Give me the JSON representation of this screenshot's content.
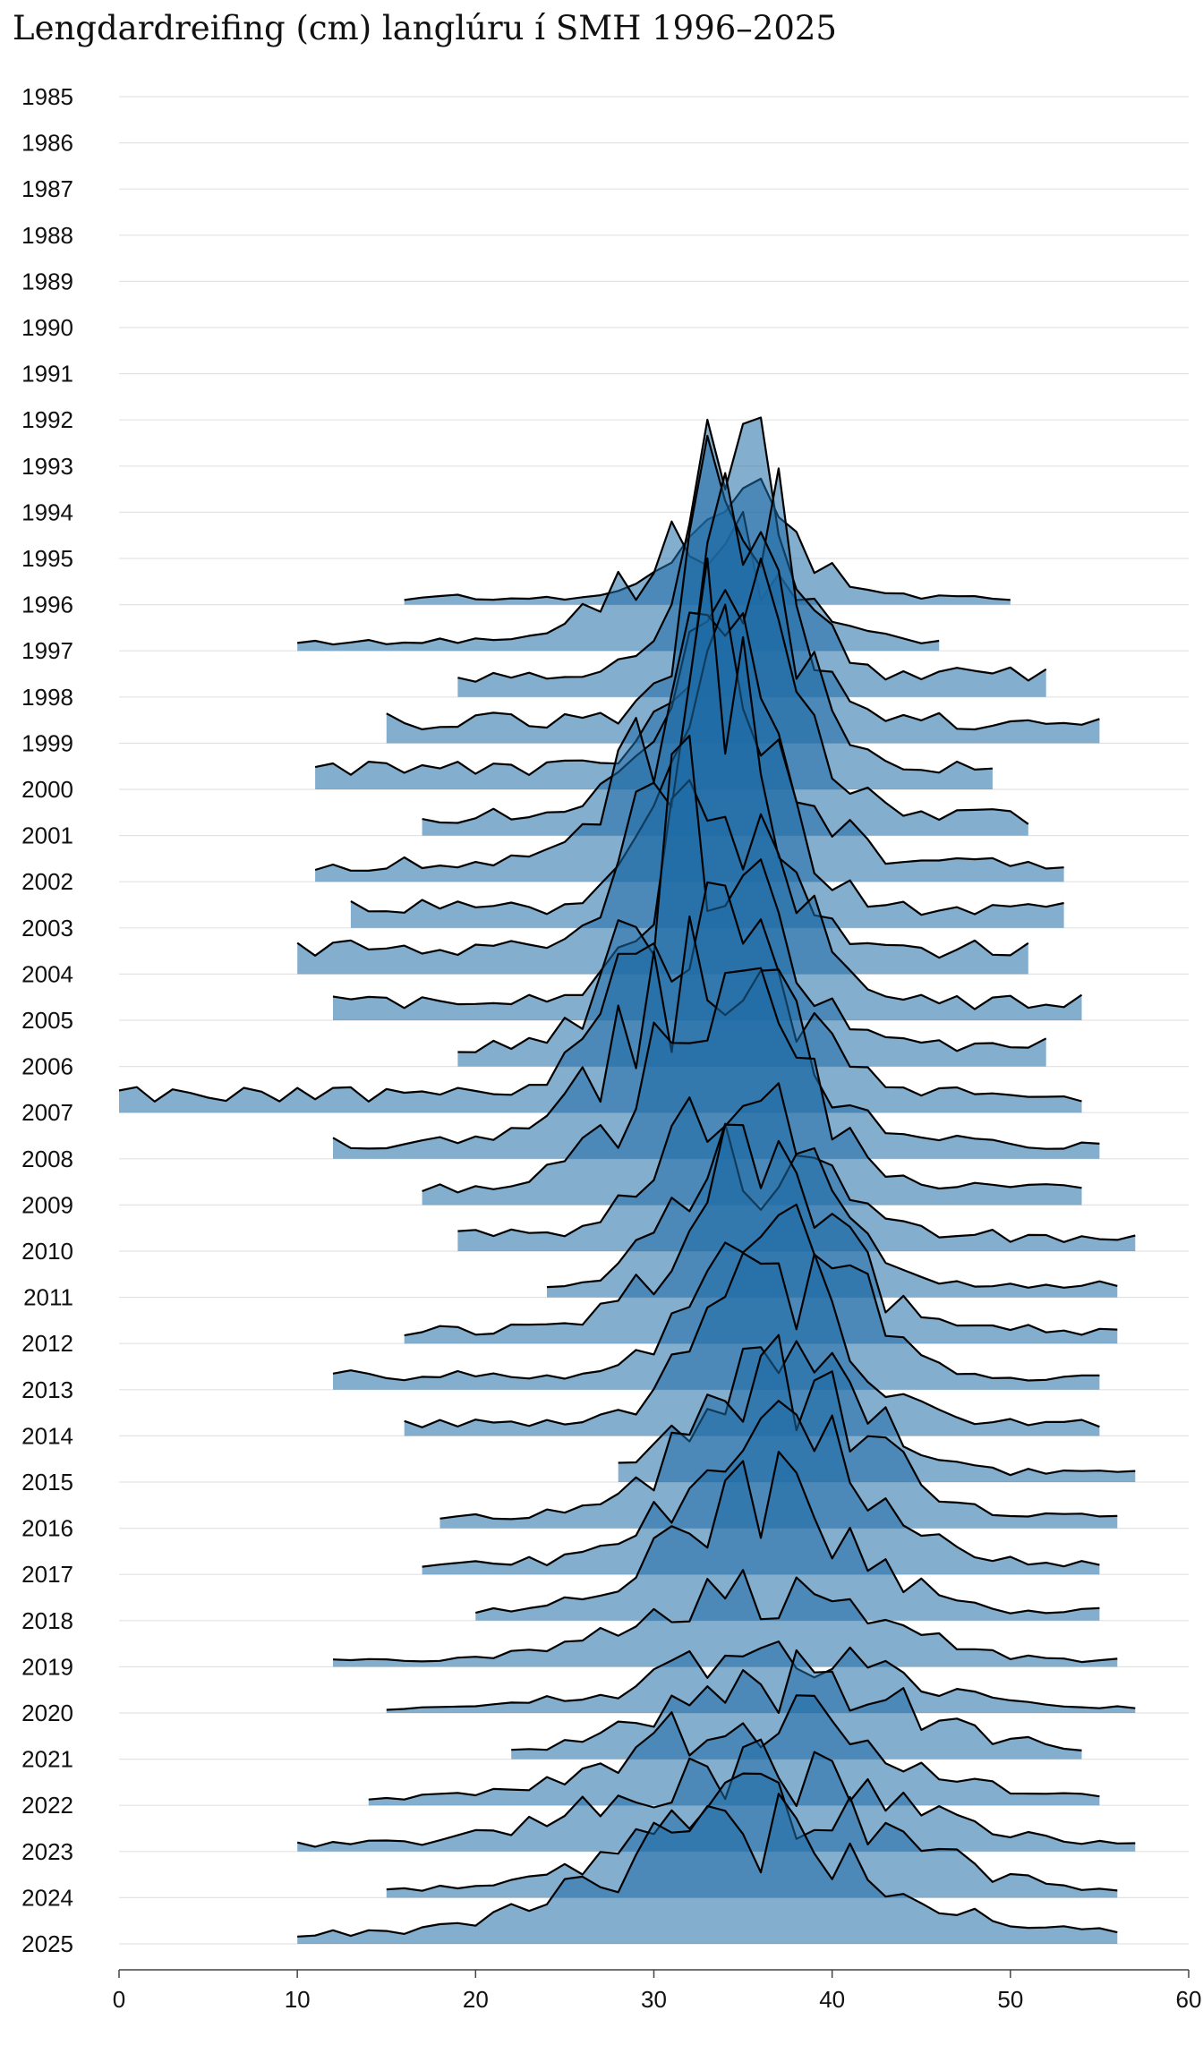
{
  "chart_data": {
    "type": "ridgeline",
    "title": "Lengdardreifing (cm) langlúru í SMH 1996–2025",
    "xlabel": "",
    "ylabel": "",
    "xlim": [
      0,
      60
    ],
    "x_ticks": [
      0,
      10,
      20,
      30,
      40,
      50,
      60
    ],
    "grid": true,
    "legend": "none",
    "colors": {
      "fill": "#1f6ba5",
      "line": "#000000",
      "grid": "#e3e3e3",
      "axis": "#444444"
    },
    "years": [
      "1985",
      "1986",
      "1987",
      "1988",
      "1989",
      "1990",
      "1991",
      "1992",
      "1993",
      "1994",
      "1995",
      "1996",
      "1997",
      "1998",
      "1999",
      "2000",
      "2001",
      "2002",
      "2003",
      "2004",
      "2005",
      "2006",
      "2007",
      "2008",
      "2009",
      "2010",
      "2011",
      "2012",
      "2013",
      "2014",
      "2015",
      "2016",
      "2017",
      "2018",
      "2019",
      "2020",
      "2021",
      "2022",
      "2023",
      "2024",
      "2025"
    ],
    "series": [
      {
        "year": "1996",
        "peak": 35,
        "sd": 3.2,
        "amp": 1.0,
        "xmin": 16,
        "xmax": 50
      },
      {
        "year": "1997",
        "peak": 33,
        "sd": 4.2,
        "amp": 1.2,
        "xmin": 10,
        "xmax": 46
      },
      {
        "year": "1998",
        "peak": 35,
        "sd": 2.6,
        "amp": 3.0,
        "xmin": 19,
        "xmax": 52
      },
      {
        "year": "1999",
        "peak": 35,
        "sd": 2.5,
        "amp": 3.2,
        "xmin": 15,
        "xmax": 55
      },
      {
        "year": "2000",
        "peak": 35,
        "sd": 2.7,
        "amp": 3.0,
        "xmin": 11,
        "xmax": 49
      },
      {
        "year": "2001",
        "peak": 34,
        "sd": 3.6,
        "amp": 2.6,
        "xmin": 17,
        "xmax": 51
      },
      {
        "year": "2002",
        "peak": 33,
        "sd": 4.0,
        "amp": 2.4,
        "xmin": 11,
        "xmax": 53
      },
      {
        "year": "2003",
        "peak": 34,
        "sd": 3.0,
        "amp": 2.8,
        "xmin": 13,
        "xmax": 53
      },
      {
        "year": "2004",
        "peak": 33,
        "sd": 3.2,
        "amp": 3.3,
        "xmin": 10,
        "xmax": 51
      },
      {
        "year": "2005",
        "peak": 34,
        "sd": 3.4,
        "amp": 2.5,
        "xmin": 12,
        "xmax": 54
      },
      {
        "year": "2006",
        "peak": 33,
        "sd": 3.6,
        "amp": 2.8,
        "xmin": 19,
        "xmax": 52
      },
      {
        "year": "2007",
        "peak": 33,
        "sd": 4.0,
        "amp": 2.6,
        "xmin": 0,
        "xmax": 54
      },
      {
        "year": "2008",
        "peak": 33,
        "sd": 4.5,
        "amp": 2.2,
        "xmin": 12,
        "xmax": 55
      },
      {
        "year": "2009",
        "peak": 34,
        "sd": 4.5,
        "amp": 2.1,
        "xmin": 17,
        "xmax": 54
      },
      {
        "year": "2010",
        "peak": 35,
        "sd": 3.8,
        "amp": 2.1,
        "xmin": 19,
        "xmax": 57
      },
      {
        "year": "2011",
        "peak": 36,
        "sd": 4.0,
        "amp": 1.6,
        "xmin": 24,
        "xmax": 56
      },
      {
        "year": "2012",
        "peak": 36,
        "sd": 4.2,
        "amp": 1.9,
        "xmin": 16,
        "xmax": 56
      },
      {
        "year": "2013",
        "peak": 37,
        "sd": 4.0,
        "amp": 1.9,
        "xmin": 12,
        "xmax": 55
      },
      {
        "year": "2014",
        "peak": 37,
        "sd": 4.2,
        "amp": 1.6,
        "xmin": 16,
        "xmax": 55
      },
      {
        "year": "2015",
        "peak": 37,
        "sd": 4.5,
        "amp": 1.3,
        "xmin": 28,
        "xmax": 57
      },
      {
        "year": "2016",
        "peak": 37,
        "sd": 4.8,
        "amp": 1.5,
        "xmin": 18,
        "xmax": 56
      },
      {
        "year": "2017",
        "peak": 37,
        "sd": 4.6,
        "amp": 1.6,
        "xmin": 17,
        "xmax": 55
      },
      {
        "year": "2018",
        "peak": 36,
        "sd": 5.0,
        "amp": 1.3,
        "xmin": 20,
        "xmax": 55
      },
      {
        "year": "2019",
        "peak": 36,
        "sd": 6.5,
        "amp": 0.8,
        "xmin": 12,
        "xmax": 56
      },
      {
        "year": "2020",
        "peak": 37,
        "sd": 6.5,
        "amp": 0.65,
        "xmin": 15,
        "xmax": 57
      },
      {
        "year": "2021",
        "peak": 38,
        "sd": 6.5,
        "amp": 0.85,
        "xmin": 22,
        "xmax": 54
      },
      {
        "year": "2022",
        "peak": 36,
        "sd": 6.5,
        "amp": 1.0,
        "xmin": 14,
        "xmax": 55
      },
      {
        "year": "2023",
        "peak": 35,
        "sd": 7.5,
        "amp": 0.9,
        "xmin": 10,
        "xmax": 57
      },
      {
        "year": "2024",
        "peak": 37,
        "sd": 6.5,
        "amp": 1.1,
        "xmin": 15,
        "xmax": 56
      },
      {
        "year": "2025",
        "peak": 35,
        "sd": 7.0,
        "amp": 1.3,
        "xmin": 10,
        "xmax": 56
      }
    ]
  }
}
